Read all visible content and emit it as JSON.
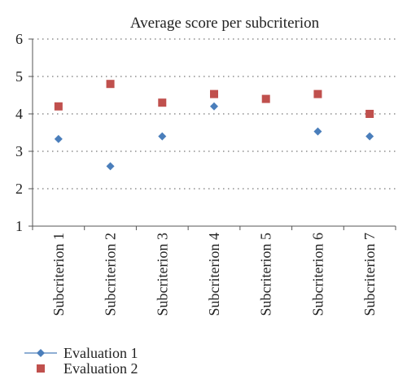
{
  "chart_data": {
    "type": "scatter",
    "title": "Average score per subcriterion",
    "xlabel": "",
    "ylabel": "",
    "categories": [
      "Subcriterion 1",
      "Subcriterion 2",
      "Subcriterion 3",
      "Subcriterion 4",
      "Subcriterion 5",
      "Subcriterion 6",
      "Subcriterion 7"
    ],
    "ylim": [
      1,
      6
    ],
    "yticks": [
      "1",
      "2",
      "3",
      "4",
      "5",
      "6"
    ],
    "grid": true,
    "legend_position": "bottom-left",
    "series": [
      {
        "name": "Evaluation 1",
        "marker": "diamond",
        "color": "#4a7ebb",
        "values": [
          3.33,
          2.6,
          3.4,
          4.2,
          null,
          3.53,
          3.4
        ]
      },
      {
        "name": "Evaluation 2",
        "marker": "square",
        "color": "#c0504d",
        "values": [
          4.2,
          4.8,
          4.3,
          4.53,
          4.4,
          4.53,
          4.0
        ]
      }
    ]
  }
}
